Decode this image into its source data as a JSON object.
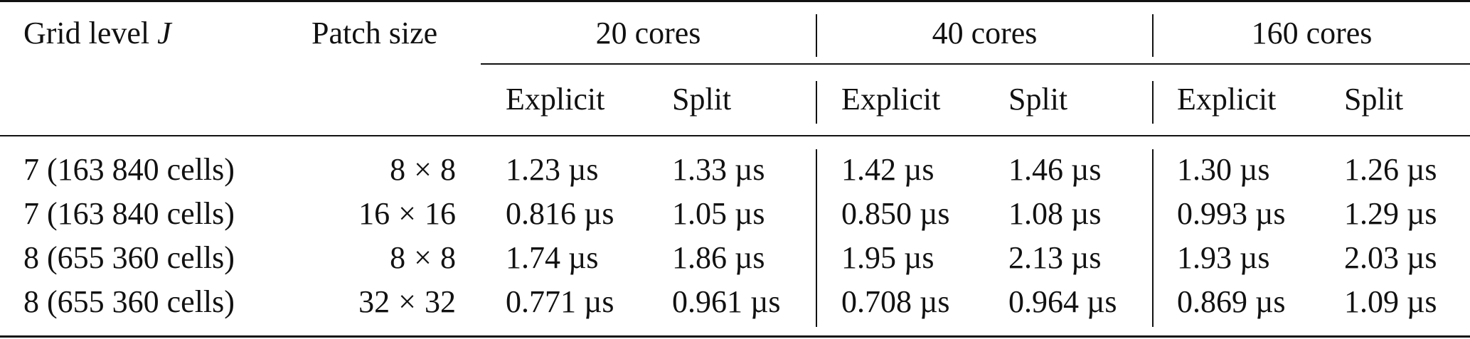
{
  "header": {
    "grid_level": "Grid level",
    "grid_level_symbol": "J",
    "patch_size": "Patch size",
    "groups": [
      "20 cores",
      "40 cores",
      "160 cores"
    ],
    "sub": [
      "Explicit",
      "Split",
      "Explicit",
      "Split",
      "Explicit",
      "Split"
    ]
  },
  "rows": [
    {
      "grid": "7 (163 840 cells)",
      "patch_a": "8",
      "patch_b": "8",
      "values": [
        "1.23 µs",
        "1.33 µs",
        "1.42 µs",
        "1.46 µs",
        "1.30 µs",
        "1.26 µs"
      ]
    },
    {
      "grid": "7 (163 840 cells)",
      "patch_a": "16",
      "patch_b": "16",
      "values": [
        "0.816 µs",
        "1.05 µs",
        "0.850 µs",
        "1.08 µs",
        "0.993 µs",
        "1.29 µs"
      ]
    },
    {
      "grid": "8 (655 360 cells)",
      "patch_a": "8",
      "patch_b": "8",
      "values": [
        "1.74 µs",
        "1.86 µs",
        "1.95 µs",
        "2.13 µs",
        "1.93 µs",
        "2.03 µs"
      ]
    },
    {
      "grid": "8 (655 360 cells)",
      "patch_a": "32",
      "patch_b": "32",
      "values": [
        "0.771 µs",
        "0.961 µs",
        "0.708 µs",
        "0.964 µs",
        "0.869 µs",
        "1.09 µs"
      ]
    }
  ]
}
